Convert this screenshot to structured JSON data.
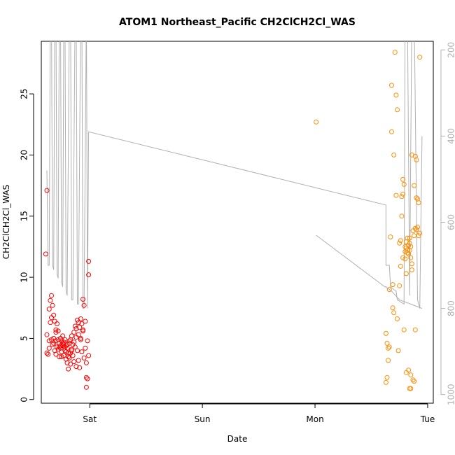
{
  "chart_data": {
    "type": "scatter",
    "title": "ATOM1 Northeast_Pacific CH2ClCH2Cl_WAS",
    "xlabel": "Date",
    "ylabel": "CH2ClCH2Cl_WAS",
    "x_axis": {
      "unit": "days",
      "ticks": [
        {
          "x": 1,
          "label": "Sat"
        },
        {
          "x": 2,
          "label": "Sun"
        },
        {
          "x": 3,
          "label": "Mon"
        },
        {
          "x": 4,
          "label": "Tue"
        }
      ],
      "xlim": [
        0.57,
        4.05
      ]
    },
    "y_axis": {
      "ylim": [
        -0.3,
        29.3
      ],
      "ticks": [
        0,
        5,
        10,
        15,
        20,
        25
      ]
    },
    "y2_axis": {
      "description": "pressure (inverted, gray)",
      "ylim": [
        1020,
        180
      ],
      "ticks": [
        200,
        400,
        600,
        800,
        1000
      ],
      "color": "#b0b0b0"
    },
    "colors": {
      "series1": "#ff0000",
      "series2": "#ff8c00",
      "pressure_line": "#b0b0b0"
    },
    "series": [
      {
        "color": "#ff0000",
        "points": [
          [
            0.62,
            17.1
          ],
          [
            0.61,
            11.9
          ],
          [
            0.62,
            5.3
          ],
          [
            0.62,
            3.8
          ],
          [
            0.63,
            3.7
          ],
          [
            0.64,
            4.2
          ],
          [
            0.64,
            7.4
          ],
          [
            0.65,
            6.3
          ],
          [
            0.65,
            8.1
          ],
          [
            0.66,
            8.5
          ],
          [
            0.66,
            6.7
          ],
          [
            0.67,
            7.7
          ],
          [
            0.67,
            4.5
          ],
          [
            0.68,
            5.0
          ],
          [
            0.68,
            6.9
          ],
          [
            0.69,
            4.0
          ],
          [
            0.69,
            6.4
          ],
          [
            0.7,
            5.5
          ],
          [
            0.7,
            4.8
          ],
          [
            0.71,
            6.2
          ],
          [
            0.71,
            4.3
          ],
          [
            0.72,
            5.6
          ],
          [
            0.72,
            4.1
          ],
          [
            0.73,
            4.6
          ],
          [
            0.73,
            3.5
          ],
          [
            0.74,
            5.0
          ],
          [
            0.74,
            4.2
          ],
          [
            0.75,
            4.8
          ],
          [
            0.75,
            3.9
          ],
          [
            0.76,
            4.4
          ],
          [
            0.76,
            5.2
          ],
          [
            0.77,
            3.6
          ],
          [
            0.77,
            4.7
          ],
          [
            0.78,
            4.0
          ],
          [
            0.78,
            4.9
          ],
          [
            0.79,
            3.3
          ],
          [
            0.79,
            4.4
          ],
          [
            0.8,
            3.0
          ],
          [
            0.8,
            4.2
          ],
          [
            0.81,
            2.5
          ],
          [
            0.81,
            3.8
          ],
          [
            0.82,
            4.6
          ],
          [
            0.82,
            3.4
          ],
          [
            0.83,
            4.9
          ],
          [
            0.83,
            2.9
          ],
          [
            0.84,
            4.1
          ],
          [
            0.84,
            5.2
          ],
          [
            0.85,
            3.6
          ],
          [
            0.85,
            4.5
          ],
          [
            0.86,
            5.5
          ],
          [
            0.86,
            3.1
          ],
          [
            0.87,
            6.0
          ],
          [
            0.87,
            4.3
          ],
          [
            0.88,
            5.8
          ],
          [
            0.88,
            2.7
          ],
          [
            0.89,
            6.5
          ],
          [
            0.89,
            4.0
          ],
          [
            0.9,
            6.3
          ],
          [
            0.9,
            3.2
          ],
          [
            0.91,
            5.9
          ],
          [
            0.91,
            2.6
          ],
          [
            0.92,
            6.6
          ],
          [
            0.92,
            4.9
          ],
          [
            0.93,
            6.2
          ],
          [
            0.93,
            3.9
          ],
          [
            0.94,
            5.6
          ],
          [
            0.94,
            8.2
          ],
          [
            0.95,
            7.7
          ],
          [
            0.95,
            3.4
          ],
          [
            0.96,
            4.2
          ],
          [
            0.96,
            6.4
          ],
          [
            0.97,
            1.8
          ],
          [
            0.97,
            3.0
          ],
          [
            0.97,
            1.0
          ],
          [
            0.98,
            4.8
          ],
          [
            0.98,
            1.7
          ],
          [
            0.99,
            10.2
          ],
          [
            0.99,
            11.3
          ],
          [
            0.99,
            3.6
          ],
          [
            0.74,
            4.4
          ],
          [
            0.76,
            4.6
          ],
          [
            0.78,
            4.3
          ],
          [
            0.8,
            4.5
          ],
          [
            0.82,
            4.8
          ],
          [
            0.84,
            4.0
          ],
          [
            0.86,
            4.7
          ],
          [
            0.88,
            5.1
          ],
          [
            0.9,
            5.3
          ],
          [
            0.92,
            5.0
          ],
          [
            0.94,
            5.7
          ],
          [
            0.7,
            5.7
          ],
          [
            0.72,
            4.9
          ],
          [
            0.68,
            4.6
          ],
          [
            0.66,
            4.9
          ],
          [
            0.64,
            4.8
          ],
          [
            0.7,
            3.7
          ],
          [
            0.73,
            4.3
          ],
          [
            0.75,
            3.5
          ],
          [
            0.77,
            4.5
          ],
          [
            0.79,
            3.9
          ],
          [
            0.81,
            3.5
          ],
          [
            0.83,
            3.8
          ]
        ]
      },
      {
        "color": "#ff8c00",
        "points": [
          [
            3.01,
            22.7
          ],
          [
            3.63,
            5.4
          ],
          [
            3.64,
            4.6
          ],
          [
            3.64,
            1.8
          ],
          [
            3.63,
            1.4
          ],
          [
            3.65,
            4.2
          ],
          [
            3.65,
            3.2
          ],
          [
            3.66,
            4.3
          ],
          [
            3.66,
            9.0
          ],
          [
            3.67,
            13.3
          ],
          [
            3.68,
            25.7
          ],
          [
            3.68,
            21.9
          ],
          [
            3.69,
            9.4
          ],
          [
            3.69,
            7.5
          ],
          [
            3.7,
            20.0
          ],
          [
            3.7,
            7.1
          ],
          [
            3.71,
            28.4
          ],
          [
            3.72,
            24.9
          ],
          [
            3.72,
            16.7
          ],
          [
            3.73,
            23.7
          ],
          [
            3.73,
            6.6
          ],
          [
            3.74,
            4.0
          ],
          [
            3.75,
            9.3
          ],
          [
            3.75,
            12.8
          ],
          [
            3.76,
            13.0
          ],
          [
            3.76,
            10.9
          ],
          [
            3.77,
            16.6
          ],
          [
            3.77,
            15.0
          ],
          [
            3.78,
            16.8
          ],
          [
            3.78,
            18.0
          ],
          [
            3.78,
            11.6
          ],
          [
            3.79,
            17.6
          ],
          [
            3.79,
            5.7
          ],
          [
            3.8,
            11.5
          ],
          [
            3.8,
            12.1
          ],
          [
            3.81,
            12.4
          ],
          [
            3.81,
            2.2
          ],
          [
            3.81,
            10.3
          ],
          [
            3.82,
            13.2
          ],
          [
            3.82,
            12.0
          ],
          [
            3.83,
            12.6
          ],
          [
            3.83,
            2.4
          ],
          [
            3.84,
            12.8
          ],
          [
            3.84,
            12.2
          ],
          [
            3.84,
            0.9
          ],
          [
            3.85,
            11.6
          ],
          [
            3.85,
            2.0
          ],
          [
            3.85,
            12.5
          ],
          [
            3.86,
            11.1
          ],
          [
            3.86,
            20.0
          ],
          [
            3.86,
            10.6
          ],
          [
            3.87,
            13.8
          ],
          [
            3.87,
            1.6
          ],
          [
            3.88,
            17.5
          ],
          [
            3.88,
            13.4
          ],
          [
            3.89,
            19.9
          ],
          [
            3.89,
            5.7
          ],
          [
            3.9,
            19.6
          ],
          [
            3.9,
            16.5
          ],
          [
            3.9,
            13.9
          ],
          [
            3.91,
            14.1
          ],
          [
            3.91,
            16.4
          ],
          [
            3.92,
            16.1
          ],
          [
            3.92,
            13.4
          ],
          [
            3.93,
            13.6
          ],
          [
            3.93,
            28.0
          ],
          [
            3.85,
            0.9
          ],
          [
            3.88,
            1.5
          ],
          [
            3.89,
            14.0
          ],
          [
            3.82,
            12.2
          ],
          [
            3.83,
            11.9
          ],
          [
            3.84,
            13.2
          ],
          [
            3.8,
            12.5
          ],
          [
            3.81,
            12.9
          ]
        ]
      }
    ]
  }
}
